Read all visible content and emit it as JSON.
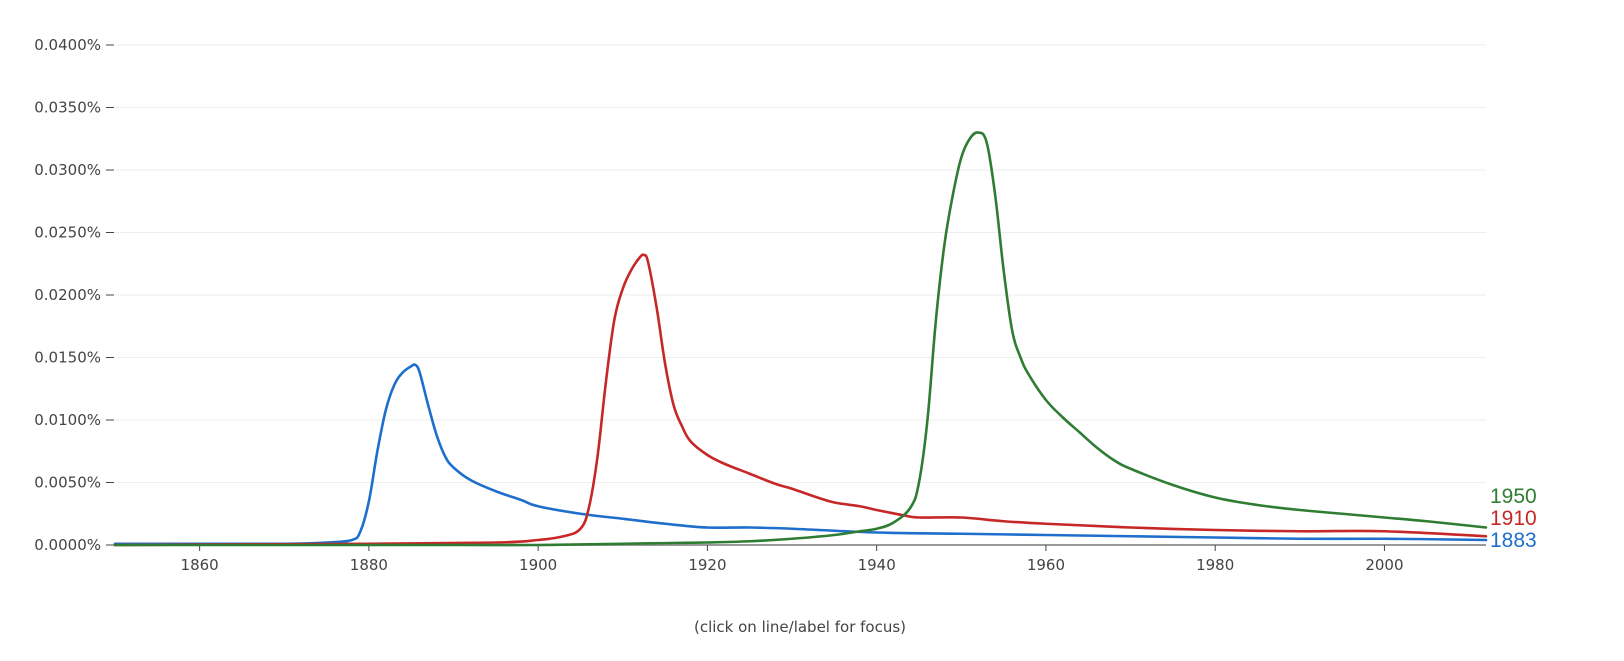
{
  "footer_note": "(click on line/label for focus)",
  "chart_data": {
    "type": "line",
    "xlim": [
      1850,
      2012
    ],
    "ylim": [
      0,
      0.04
    ],
    "y_unit": "%",
    "yticks": [
      {
        "value": 0.0,
        "label": "0.0000%"
      },
      {
        "value": 0.005,
        "label": "0.0050%"
      },
      {
        "value": 0.01,
        "label": "0.0100%"
      },
      {
        "value": 0.015,
        "label": "0.0150%"
      },
      {
        "value": 0.02,
        "label": "0.0200%"
      },
      {
        "value": 0.025,
        "label": "0.0250%"
      },
      {
        "value": 0.03,
        "label": "0.0300%"
      },
      {
        "value": 0.035,
        "label": "0.0350%"
      },
      {
        "value": 0.04,
        "label": "0.0400%"
      }
    ],
    "xticks": [
      {
        "value": 1860,
        "label": "1860"
      },
      {
        "value": 1880,
        "label": "1880"
      },
      {
        "value": 1900,
        "label": "1900"
      },
      {
        "value": 1920,
        "label": "1920"
      },
      {
        "value": 1940,
        "label": "1940"
      },
      {
        "value": 1960,
        "label": "1960"
      },
      {
        "value": 1980,
        "label": "1980"
      },
      {
        "value": 2000,
        "label": "2000"
      }
    ],
    "grid": true,
    "legend": "series labels at right end of lines",
    "series": [
      {
        "name": "1950",
        "color": "#2e7d32",
        "points": [
          [
            1850,
            0.0
          ],
          [
            1870,
            0.0
          ],
          [
            1890,
            0.0
          ],
          [
            1900,
            0.0
          ],
          [
            1910,
            0.0001
          ],
          [
            1915,
            0.00015
          ],
          [
            1920,
            0.0002
          ],
          [
            1925,
            0.0003
          ],
          [
            1930,
            0.0005
          ],
          [
            1935,
            0.0008
          ],
          [
            1938,
            0.0011
          ],
          [
            1940,
            0.0013
          ],
          [
            1942,
            0.0018
          ],
          [
            1944,
            0.003
          ],
          [
            1945,
            0.005
          ],
          [
            1946,
            0.01
          ],
          [
            1947,
            0.018
          ],
          [
            1948,
            0.024
          ],
          [
            1949,
            0.028
          ],
          [
            1950,
            0.031
          ],
          [
            1951,
            0.0325
          ],
          [
            1952,
            0.033
          ],
          [
            1953,
            0.0322
          ],
          [
            1954,
            0.028
          ],
          [
            1955,
            0.022
          ],
          [
            1956,
            0.0172
          ],
          [
            1957,
            0.015
          ],
          [
            1958,
            0.0136
          ],
          [
            1960,
            0.0116
          ],
          [
            1962,
            0.0102
          ],
          [
            1964,
            0.009
          ],
          [
            1966,
            0.0078
          ],
          [
            1968,
            0.0068
          ],
          [
            1970,
            0.0061
          ],
          [
            1975,
            0.0048
          ],
          [
            1980,
            0.0038
          ],
          [
            1985,
            0.0032
          ],
          [
            1990,
            0.0028
          ],
          [
            1995,
            0.0025
          ],
          [
            2000,
            0.0022
          ],
          [
            2005,
            0.0019
          ],
          [
            2012,
            0.0014
          ]
        ]
      },
      {
        "name": "1910",
        "color": "#c62828",
        "points": [
          [
            1850,
            0.0
          ],
          [
            1880,
            0.0001
          ],
          [
            1895,
            0.0002
          ],
          [
            1900,
            0.0004
          ],
          [
            1903,
            0.0007
          ],
          [
            1905,
            0.0013
          ],
          [
            1906,
            0.003
          ],
          [
            1907,
            0.007
          ],
          [
            1908,
            0.013
          ],
          [
            1909,
            0.018
          ],
          [
            1910,
            0.0205
          ],
          [
            1911,
            0.022
          ],
          [
            1912,
            0.023
          ],
          [
            1912.5,
            0.0232
          ],
          [
            1913,
            0.0226
          ],
          [
            1914,
            0.019
          ],
          [
            1915,
            0.0145
          ],
          [
            1916,
            0.0112
          ],
          [
            1917,
            0.0095
          ],
          [
            1918,
            0.0083
          ],
          [
            1920,
            0.0072
          ],
          [
            1922,
            0.0065
          ],
          [
            1925,
            0.0057
          ],
          [
            1928,
            0.0049
          ],
          [
            1930,
            0.0045
          ],
          [
            1933,
            0.0038
          ],
          [
            1935,
            0.0034
          ],
          [
            1938,
            0.0031
          ],
          [
            1940,
            0.0028
          ],
          [
            1943,
            0.0024
          ],
          [
            1945,
            0.0022
          ],
          [
            1950,
            0.0022
          ],
          [
            1955,
            0.0019
          ],
          [
            1960,
            0.0017
          ],
          [
            1970,
            0.0014
          ],
          [
            1980,
            0.0012
          ],
          [
            1990,
            0.0011
          ],
          [
            2000,
            0.0011
          ],
          [
            2012,
            0.0007
          ]
        ]
      },
      {
        "name": "1883",
        "color": "#1e6fcc",
        "points": [
          [
            1850,
            0.0001
          ],
          [
            1860,
            0.0001
          ],
          [
            1870,
            0.0001
          ],
          [
            1875,
            0.0002
          ],
          [
            1878,
            0.0004
          ],
          [
            1879,
            0.0011
          ],
          [
            1880,
            0.0035
          ],
          [
            1881,
            0.0075
          ],
          [
            1882,
            0.0108
          ],
          [
            1883,
            0.0128
          ],
          [
            1884,
            0.0138
          ],
          [
            1885,
            0.0143
          ],
          [
            1885.5,
            0.0144
          ],
          [
            1886,
            0.0138
          ],
          [
            1887,
            0.0112
          ],
          [
            1888,
            0.0088
          ],
          [
            1889,
            0.0071
          ],
          [
            1890,
            0.0062
          ],
          [
            1892,
            0.0052
          ],
          [
            1895,
            0.0043
          ],
          [
            1898,
            0.0036
          ],
          [
            1900,
            0.0031
          ],
          [
            1905,
            0.0025
          ],
          [
            1910,
            0.0021
          ],
          [
            1915,
            0.0017
          ],
          [
            1920,
            0.0014
          ],
          [
            1925,
            0.0014
          ],
          [
            1930,
            0.0013
          ],
          [
            1940,
            0.001
          ],
          [
            1950,
            0.0009
          ],
          [
            1960,
            0.0008
          ],
          [
            1970,
            0.0007
          ],
          [
            1980,
            0.0006
          ],
          [
            1990,
            0.0005
          ],
          [
            2000,
            0.0005
          ],
          [
            2012,
            0.0004
          ]
        ]
      }
    ]
  }
}
